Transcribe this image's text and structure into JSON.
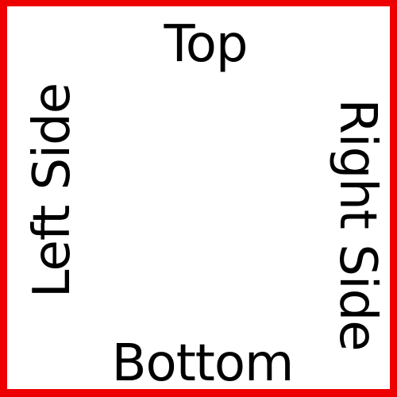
{
  "labels": {
    "top": "Top",
    "bottom": "Bottom",
    "left": "Left Side",
    "right": "Right Side"
  },
  "colors": {
    "border": "#ee0000",
    "background": "#ffffff",
    "text": "#000000"
  }
}
